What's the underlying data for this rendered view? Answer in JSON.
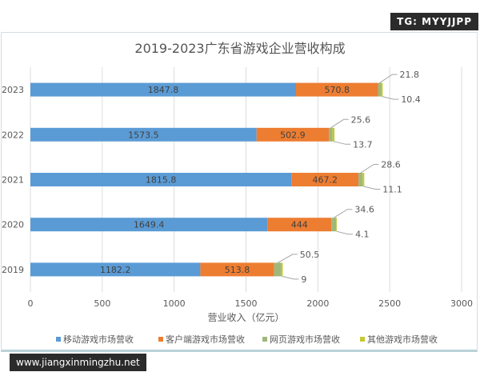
{
  "watermark_top": "TG: MYYJJPP",
  "watermark_bottom": "www.jiangxinmingzhu.net",
  "chart_data": {
    "type": "bar",
    "orientation": "horizontal",
    "stacked": true,
    "title": "2019-2023广东省游戏企业营收构成",
    "xlabel": "营业收入（亿元）",
    "ylabel": "",
    "xlim": [
      0,
      3000
    ],
    "xticks": [
      0,
      500,
      1000,
      1500,
      2000,
      2500,
      3000
    ],
    "grid": true,
    "legend_position": "bottom",
    "categories": [
      "2023",
      "2022",
      "2021",
      "2020",
      "2019"
    ],
    "series": [
      {
        "name": "移动游戏市场营收",
        "color": "#5b9bd5",
        "values": [
          1847.8,
          1573.5,
          1815.8,
          1649.4,
          1182.2
        ]
      },
      {
        "name": "客户端游戏市场营收",
        "color": "#ed7d31",
        "values": [
          570.8,
          502.9,
          467.2,
          444,
          513.8
        ]
      },
      {
        "name": "网页游戏市场营收",
        "color": "#9fb87a",
        "values": [
          21.8,
          25.6,
          28.6,
          34.6,
          50.5
        ]
      },
      {
        "name": "其他游戏市场营收",
        "color": "#c3c934",
        "values": [
          10.4,
          13.7,
          11.1,
          4.1,
          9
        ]
      }
    ]
  }
}
